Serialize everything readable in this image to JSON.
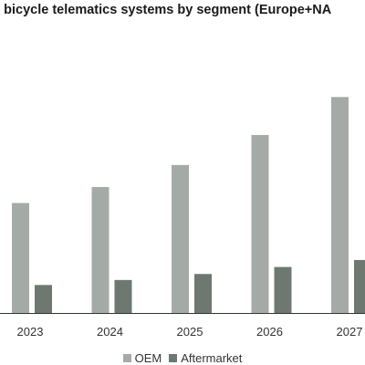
{
  "chart_data": {
    "type": "bar",
    "title": "ve bicycle telematics systems by segment (Europe+NA",
    "categories": [
      "2023",
      "2024",
      "2025",
      "2026",
      "2027"
    ],
    "series": [
      {
        "name": "OEM",
        "color": "#a4aba6",
        "values": [
          110,
          126,
          148,
          178,
          216
        ]
      },
      {
        "name": "Aftermarket",
        "color": "#6d7870",
        "values": [
          28,
          33,
          39,
          46,
          53
        ]
      }
    ],
    "ylim": [
      0,
      240
    ],
    "grid": false,
    "legend_position": "bottom"
  }
}
